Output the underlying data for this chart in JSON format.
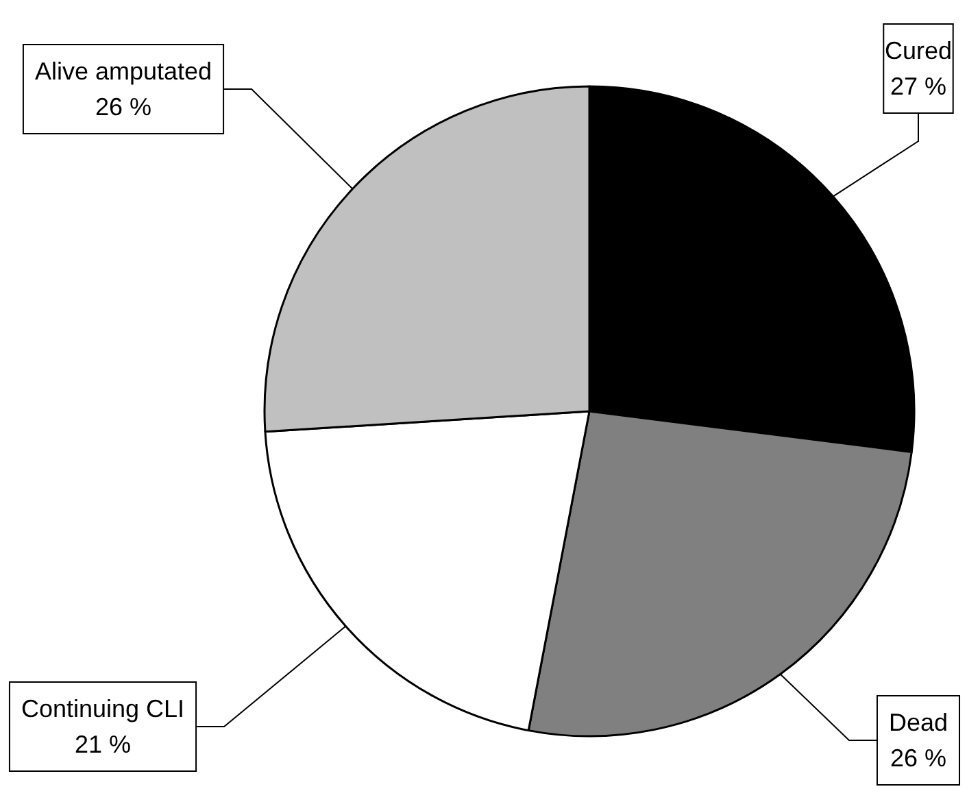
{
  "chart_data": {
    "type": "pie",
    "categories": [
      "Cured",
      "Dead",
      "Continuing CLI",
      "Alive amputated"
    ],
    "values": [
      27,
      26,
      21,
      26
    ],
    "value_labels": [
      "27 %",
      "26 %",
      "21 %",
      "26 %"
    ],
    "colors": [
      "#000000",
      "#808080",
      "#ffffff",
      "#c0c0c0"
    ],
    "legend": false
  }
}
